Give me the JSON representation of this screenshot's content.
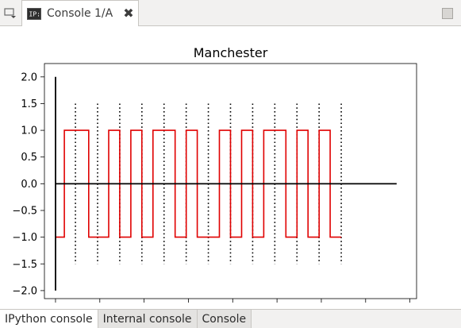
{
  "window": {
    "tab_title": "Console 1/A",
    "tab_icon": "ipython-console-icon",
    "tab_icon_text": "IP:",
    "close_glyph": "✖"
  },
  "bottom_tabs": [
    {
      "label": "IPython console",
      "active": true
    },
    {
      "label": "Internal console",
      "active": false
    },
    {
      "label": "Console",
      "active": false
    }
  ],
  "colors": {
    "signal": "#e00000",
    "axis_lines": "#000000"
  },
  "chart_data": {
    "type": "line",
    "title": "Manchester",
    "xlabel": "",
    "ylabel": "",
    "xlim": [
      -0.5,
      16.3
    ],
    "ylim": [
      -2.15,
      2.25
    ],
    "yticks": [
      2.0,
      1.5,
      1.0,
      0.5,
      0.0,
      -0.5,
      -1.0,
      -1.5,
      -2.0
    ],
    "ytick_labels": [
      "2.0",
      "1.5",
      "1.0",
      "0.5",
      "0.0",
      "−0.5",
      "−1.0",
      "−1.5",
      "−2.0"
    ],
    "xticks": [
      0,
      2,
      4,
      6,
      8,
      10,
      12,
      14,
      16
    ],
    "xtick_labels": [
      "",
      "",
      "",
      "",
      "",
      "",
      "",
      "",
      ""
    ],
    "grid": false,
    "series": [
      {
        "style": "step",
        "x": [
          0,
          0.4,
          0.4,
          1.5,
          1.5,
          2.4,
          2.4,
          2.9,
          2.9,
          3.4,
          3.4,
          3.9,
          3.9,
          4.4,
          4.4,
          5.4,
          5.4,
          5.9,
          5.9,
          6.4,
          6.4,
          7.4,
          7.4,
          7.9,
          7.9,
          8.4,
          8.4,
          8.9,
          8.9,
          9.4,
          9.4,
          10.4,
          10.4,
          10.9,
          10.9,
          11.4,
          11.4,
          11.9,
          11.9,
          12.4,
          12.4,
          12.9
        ],
        "y": [
          -1,
          -1,
          1,
          1,
          -1,
          -1,
          1,
          1,
          -1,
          -1,
          1,
          1,
          -1,
          -1,
          1,
          1,
          -1,
          -1,
          1,
          1,
          -1,
          -1,
          1,
          1,
          -1,
          -1,
          1,
          1,
          -1,
          -1,
          1,
          1,
          -1,
          -1,
          1,
          1,
          -1,
          -1,
          1,
          1,
          -1,
          -1
        ]
      },
      {
        "style": "hline",
        "x": [
          0,
          15.4
        ],
        "y": [
          0,
          0
        ]
      },
      {
        "style": "vline",
        "x": [
          0,
          0
        ],
        "y": [
          -2,
          2
        ]
      }
    ],
    "bit_boundaries": {
      "style": "dotted",
      "x": [
        0.9,
        1.9,
        2.9,
        3.9,
        4.9,
        5.9,
        6.9,
        7.9,
        8.9,
        9.9,
        10.9,
        11.9,
        12.9
      ],
      "y_range": [
        -1.5,
        1.5
      ]
    }
  }
}
